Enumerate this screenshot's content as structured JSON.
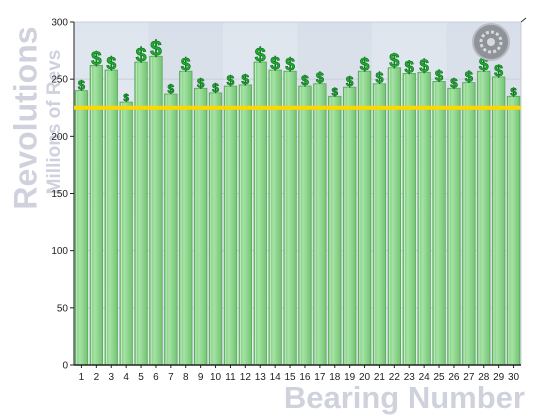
{
  "chart_data": {
    "type": "bar",
    "title": "",
    "xlabel": "Bearing Number",
    "ylabel": "Revolutions",
    "ylabel_sub": "Millions of Revs",
    "ylim": [
      0,
      300
    ],
    "yticks": [
      "0",
      "50",
      "100",
      "150",
      "200",
      "250",
      "300"
    ],
    "categories": [
      "1",
      "2",
      "3",
      "4",
      "5",
      "6",
      "7",
      "8",
      "9",
      "10",
      "11",
      "12",
      "13",
      "14",
      "15",
      "16",
      "17",
      "18",
      "19",
      "20",
      "21",
      "22",
      "23",
      "24",
      "25",
      "26",
      "27",
      "28",
      "29",
      "30"
    ],
    "values": [
      240,
      262,
      258,
      230,
      265,
      270,
      237,
      257,
      242,
      238,
      244,
      245,
      265,
      258,
      257,
      244,
      246,
      235,
      243,
      257,
      246,
      260,
      255,
      256,
      248,
      242,
      247,
      257,
      252,
      235
    ],
    "reference_line": {
      "value": 225,
      "color": "#ffd700"
    },
    "bar_color": "#86cf86",
    "marker_color": "#1fae2e",
    "grid": true,
    "legend": "none"
  },
  "marker_glyph": "$",
  "toolbar": {
    "icon": "gear-icon"
  }
}
